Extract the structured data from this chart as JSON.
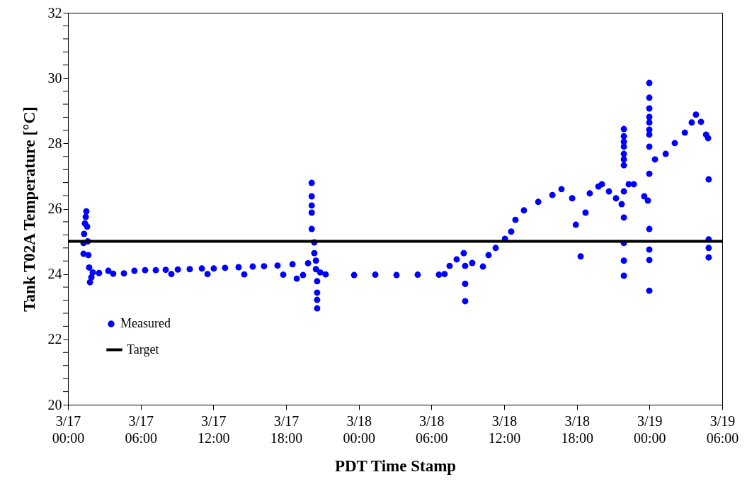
{
  "chart_data": {
    "type": "scatter",
    "xlabel": "PDT Time Stamp",
    "ylabel": "Tank T02A Temperature [°C]",
    "xlim": [
      "--03-17T00:00",
      "--03-19T06:00"
    ],
    "xticks": [
      {
        "value": "--03-17T00:00",
        "label": "3/17\n00:00"
      },
      {
        "value": "--03-17T06:00",
        "label": "3/17\n06:00"
      },
      {
        "value": "--03-17T12:00",
        "label": "3/17\n12:00"
      },
      {
        "value": "--03-17T18:00",
        "label": "3/17\n18:00"
      },
      {
        "value": "--03-18T00:00",
        "label": "3/18\n00:00"
      },
      {
        "value": "--03-18T06:00",
        "label": "3/18\n06:00"
      },
      {
        "value": "--03-18T12:00",
        "label": "3/18\n12:00"
      },
      {
        "value": "--03-18T18:00",
        "label": "3/18\n18:00"
      },
      {
        "value": "--03-19T00:00",
        "label": "3/19\n00:00"
      },
      {
        "value": "--03-19T06:00",
        "label": "3/19\n06:00"
      }
    ],
    "ylim": [
      20,
      32
    ],
    "yticks": [
      20,
      {
        "value": 20.4,
        "label": null
      },
      {
        "value": 20.8,
        "label": null
      },
      {
        "value": 21.2,
        "label": null
      },
      {
        "value": 21.6,
        "label": null
      },
      22,
      {
        "value": 22.4,
        "label": null
      },
      {
        "value": 22.8,
        "label": null
      },
      {
        "value": 23.2,
        "label": null
      },
      {
        "value": 23.6,
        "label": null
      },
      24,
      {
        "value": 24.4,
        "label": null
      },
      {
        "value": 24.8,
        "label": null
      },
      {
        "value": 25.2,
        "label": null
      },
      {
        "value": 25.6,
        "label": null
      },
      26,
      {
        "value": 26.4,
        "label": null
      },
      {
        "value": 26.8,
        "label": null
      },
      {
        "value": 27.2,
        "label": null
      },
      {
        "value": 27.6,
        "label": null
      },
      28,
      {
        "value": 28.4,
        "label": null
      },
      {
        "value": 28.8,
        "label": null
      },
      {
        "value": 29.2,
        "label": null
      },
      {
        "value": 29.6,
        "label": null
      },
      30,
      {
        "value": 30.4,
        "label": null
      },
      {
        "value": 30.8,
        "label": null
      },
      {
        "value": 31.2,
        "label": null
      },
      {
        "value": 31.6,
        "label": null
      },
      32
    ],
    "marker": "circle",
    "legend": "bottom left",
    "series": [
      {
        "name": "Measured",
        "color": "#0000ff",
        "x": [
          "--03-17T01:17",
          "--03-17T01:17",
          "--03-17T01:20",
          "--03-17T01:24",
          "--03-17T01:28",
          "--03-17T01:31",
          "--03-17T01:35",
          "--03-17T01:38",
          "--03-17T01:41",
          "--03-17T01:45",
          "--03-17T01:49",
          "--03-17T01:56",
          "--03-17T02:03",
          "--03-17T02:34",
          "--03-17T03:20",
          "--03-17T03:44",
          "--03-17T04:37",
          "--03-17T05:29",
          "--03-17T06:22",
          "--03-17T07:15",
          "--03-17T08:04",
          "--03-17T08:32",
          "--03-17T09:04",
          "--03-17T10:03",
          "--03-17T11:03",
          "--03-17T11:31",
          "--03-17T12:02",
          "--03-17T12:58",
          "--03-17T14:05",
          "--03-17T14:33",
          "--03-17T15:15",
          "--03-17T16:11",
          "--03-17T17:18",
          "--03-17T17:46",
          "--03-17T18:32",
          "--03-17T18:53",
          "--03-17T19:24",
          "--03-17T19:49",
          "--03-17T20:07",
          "--03-17T20:07",
          "--03-17T20:07",
          "--03-17T20:07",
          "--03-17T20:07",
          "--03-17T20:20",
          "--03-17T20:20",
          "--03-17T20:28",
          "--03-17T20:28",
          "--03-17T20:34",
          "--03-17T20:34",
          "--03-17T20:34",
          "--03-17T20:34",
          "--03-17T20:49",
          "--03-17T21:16",
          "--03-17T23:37",
          "--03-18T01:22",
          "--03-18T03:07",
          "--03-18T04:52",
          "--03-18T06:37",
          "--03-18T07:05",
          "--03-18T07:30",
          "--03-18T08:05",
          "--03-18T08:40",
          "--03-18T08:47",
          "--03-18T08:47",
          "--03-18T08:47",
          "--03-18T09:22",
          "--03-18T10:15",
          "--03-18T10:43",
          "--03-18T11:18",
          "--03-18T12:04",
          "--03-18T12:35",
          "--03-18T12:56",
          "--03-18T13:38",
          "--03-18T14:49",
          "--03-18T15:59",
          "--03-18T16:44",
          "--03-18T17:37",
          "--03-18T17:55",
          "--03-18T18:19",
          "--03-18T18:43",
          "--03-18T19:04",
          "--03-18T19:47",
          "--03-18T20:04",
          "--03-18T20:39",
          "--03-18T21:14",
          "--03-18T21:42",
          "--03-18T21:53",
          "--03-18T21:53",
          "--03-18T21:53",
          "--03-18T21:53",
          "--03-18T21:53",
          "--03-18T21:53",
          "--03-18T21:53",
          "--03-18T21:53",
          "--03-18T21:53",
          "--03-18T21:53",
          "--03-18T21:53",
          "--03-18T21:53",
          "--03-18T22:17",
          "--03-18T22:42",
          "--03-18T23:34",
          "--03-18T23:52",
          "--03-18T23:59",
          "--03-18T23:59",
          "--03-18T23:59",
          "--03-18T23:59",
          "--03-18T23:59",
          "--03-18T23:59",
          "--03-18T23:59",
          "--03-18T23:59",
          "--03-18T23:59",
          "--03-18T23:59",
          "--03-18T23:59",
          "--03-18T23:59",
          "--03-18T23:59",
          "--03-19T00:27",
          "--03-19T01:20",
          "--03-19T02:05",
          "--03-19T02:55",
          "--03-19T03:29",
          "--03-19T03:50",
          "--03-19T04:15",
          "--03-19T04:40",
          "--03-19T04:50",
          "--03-19T04:53",
          "--03-19T04:53",
          "--03-19T04:53",
          "--03-19T04:53"
        ],
        "values": [
          24.62,
          24.95,
          25.23,
          25.55,
          25.75,
          25.92,
          25.45,
          25.0,
          24.58,
          24.2,
          23.75,
          23.9,
          24.05,
          24.03,
          24.1,
          24.01,
          24.02,
          24.1,
          24.12,
          24.12,
          24.13,
          24.0,
          24.14,
          24.15,
          24.17,
          24.0,
          24.17,
          24.19,
          24.21,
          23.99,
          24.23,
          24.24,
          24.26,
          23.98,
          24.3,
          23.86,
          23.97,
          24.33,
          26.79,
          26.38,
          26.1,
          25.88,
          25.38,
          24.97,
          24.64,
          24.41,
          24.15,
          23.78,
          23.43,
          23.21,
          22.95,
          24.05,
          23.99,
          23.97,
          23.98,
          23.97,
          23.98,
          23.98,
          24.0,
          24.25,
          24.45,
          24.64,
          24.25,
          23.7,
          23.17,
          24.34,
          24.23,
          24.58,
          24.8,
          25.08,
          25.3,
          25.66,
          25.95,
          26.21,
          26.42,
          26.6,
          26.32,
          25.51,
          24.54,
          25.88,
          26.47,
          26.68,
          26.75,
          26.53,
          26.32,
          26.14,
          28.44,
          28.22,
          28.05,
          27.9,
          27.68,
          27.51,
          27.33,
          26.53,
          25.73,
          24.95,
          24.41,
          23.95,
          26.75,
          26.75,
          26.38,
          26.25,
          29.85,
          29.4,
          29.07,
          28.81,
          28.64,
          28.42,
          28.27,
          27.9,
          27.07,
          25.38,
          24.75,
          24.43,
          23.49,
          27.51,
          27.68,
          28.01,
          28.33,
          28.64,
          28.88,
          28.66,
          28.27,
          28.16,
          26.9,
          25.06,
          24.8,
          24.51
        ]
      }
    ],
    "ref_lines": [
      {
        "axis": "y",
        "value": 25,
        "label": "Target",
        "color": "#000000"
      }
    ]
  }
}
